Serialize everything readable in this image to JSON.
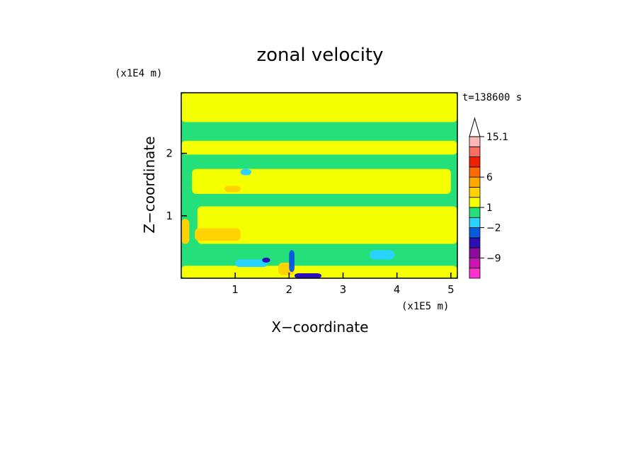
{
  "chart_data": {
    "type": "heatmap",
    "title": "zonal velocity",
    "xlabel": "X−coordinate",
    "ylabel": "Z−coordinate",
    "x_scale_label": "(x1E5 m)",
    "y_scale_label": "(x1E4 m)",
    "time_label": "t=138600 s",
    "xlim": [
      0,
      5.12
    ],
    "ylim": [
      0,
      2.97
    ],
    "x_ticks": [
      {
        "value": 1,
        "label": "1"
      },
      {
        "value": 2,
        "label": "2"
      },
      {
        "value": 3,
        "label": "3"
      },
      {
        "value": 4,
        "label": "4"
      },
      {
        "value": 5,
        "label": "5"
      }
    ],
    "y_ticks": [
      {
        "value": 1,
        "label": "1"
      },
      {
        "value": 2,
        "label": "2"
      }
    ],
    "colorbar": {
      "levels": [
        {
          "color": "#ff33cc"
        },
        {
          "color": "#cc14b4"
        },
        {
          "color": "#8c0a9c"
        },
        {
          "color": "#2a10b4"
        },
        {
          "color": "#0a5adc"
        },
        {
          "color": "#2ad2ff"
        },
        {
          "color": "#24e07a"
        },
        {
          "color": "#f4ff00"
        },
        {
          "color": "#ffd200"
        },
        {
          "color": "#ffaa00"
        },
        {
          "color": "#ff6a00"
        },
        {
          "color": "#ee2200"
        },
        {
          "color": "#f87060"
        },
        {
          "color": "#fcb8b8"
        }
      ],
      "labels": [
        {
          "value": "−9",
          "at": 2
        },
        {
          "value": "−2",
          "at": 5
        },
        {
          "value": "1",
          "at": 7
        },
        {
          "value": "6",
          "at": 10
        },
        {
          "value": "15.1",
          "at": 14
        }
      ],
      "overflow_arrow": true
    },
    "regions": [
      {
        "fill": "#24e07a",
        "x": [
          0.0,
          5.12
        ],
        "z": [
          0.0,
          2.97
        ]
      },
      {
        "fill": "#f4ff00",
        "x": [
          0.0,
          5.12
        ],
        "z": [
          2.5,
          2.97
        ]
      },
      {
        "fill": "#f4ff00",
        "x": [
          0.0,
          5.12
        ],
        "z": [
          1.98,
          2.2
        ]
      },
      {
        "fill": "#f4ff00",
        "x": [
          0.2,
          5.0
        ],
        "z": [
          1.35,
          1.75
        ]
      },
      {
        "fill": "#f4ff00",
        "x": [
          0.3,
          5.12
        ],
        "z": [
          0.55,
          1.15
        ]
      },
      {
        "fill": "#f4ff00",
        "x": [
          0.0,
          5.12
        ],
        "z": [
          0.0,
          0.2
        ]
      },
      {
        "fill": "#ffd200",
        "x": [
          0.0,
          0.15
        ],
        "z": [
          0.55,
          0.95
        ]
      },
      {
        "fill": "#ffd200",
        "x": [
          0.25,
          1.1
        ],
        "z": [
          0.6,
          0.8
        ]
      },
      {
        "fill": "#ffd200",
        "x": [
          0.8,
          1.1
        ],
        "z": [
          1.38,
          1.48
        ]
      },
      {
        "fill": "#ffd200",
        "x": [
          1.8,
          2.1
        ],
        "z": [
          0.05,
          0.25
        ]
      },
      {
        "fill": "#2ad2ff",
        "x": [
          1.0,
          1.6
        ],
        "z": [
          0.18,
          0.3
        ]
      },
      {
        "fill": "#2ad2ff",
        "x": [
          3.5,
          3.95
        ],
        "z": [
          0.3,
          0.45
        ]
      },
      {
        "fill": "#2ad2ff",
        "x": [
          1.1,
          1.3
        ],
        "z": [
          1.65,
          1.75
        ]
      },
      {
        "fill": "#2a10b4",
        "x": [
          1.5,
          1.65
        ],
        "z": [
          0.25,
          0.33
        ]
      },
      {
        "fill": "#2a10b4",
        "x": [
          2.1,
          2.6
        ],
        "z": [
          0.0,
          0.08
        ]
      },
      {
        "fill": "#0a5adc",
        "x": [
          2.0,
          2.1
        ],
        "z": [
          0.1,
          0.45
        ]
      }
    ]
  }
}
